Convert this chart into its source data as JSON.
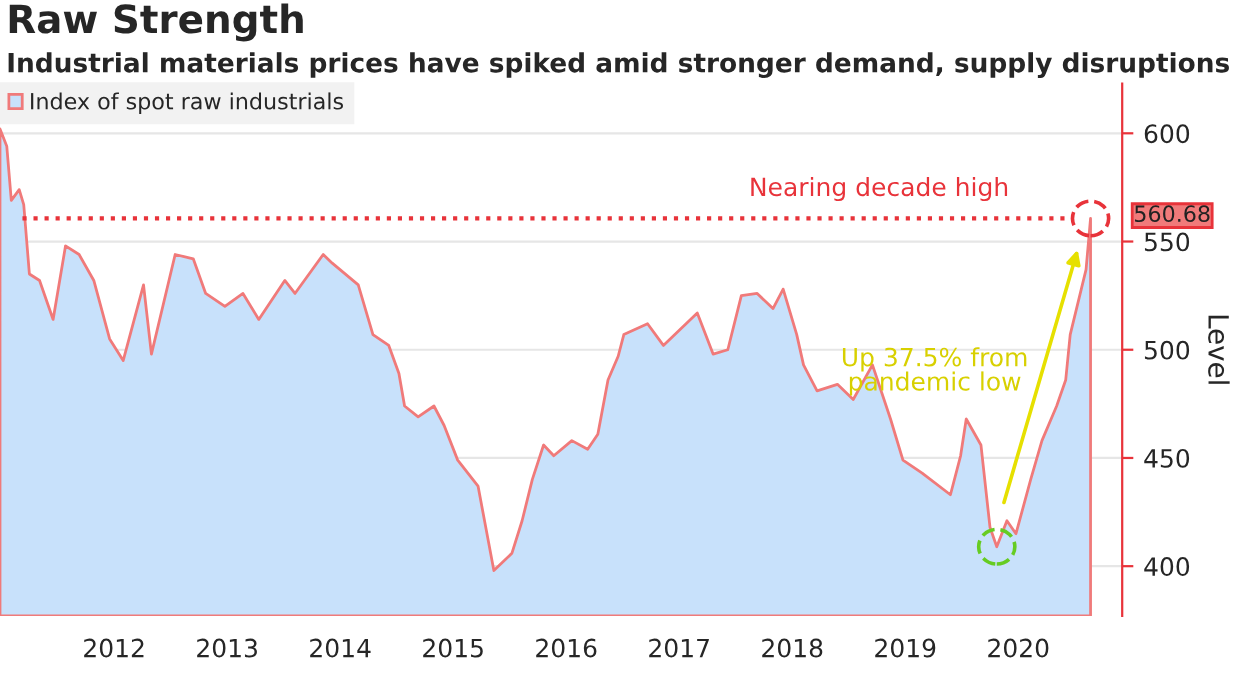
{
  "chart_data": {
    "type": "area",
    "title": "Raw Strength",
    "subtitle": "Industrial materials prices have spiked amid stronger demand, supply disruptions",
    "ylabel": "Level",
    "x": [
      2011.49,
      2011.55,
      2011.59,
      2011.66,
      2011.7,
      2011.75,
      2011.84,
      2011.96,
      2012.07,
      2012.19,
      2012.32,
      2012.46,
      2012.58,
      2012.76,
      2012.83,
      2013.04,
      2013.2,
      2013.31,
      2013.48,
      2013.64,
      2013.78,
      2014.01,
      2014.1,
      2014.35,
      2014.43,
      2014.66,
      2014.79,
      2014.93,
      2015.02,
      2015.07,
      2015.19,
      2015.33,
      2015.42,
      2015.54,
      2015.72,
      2015.86,
      2016.02,
      2016.11,
      2016.2,
      2016.3,
      2016.39,
      2016.55,
      2016.69,
      2016.78,
      2016.87,
      2016.96,
      2017.01,
      2017.22,
      2017.36,
      2017.66,
      2017.8,
      2017.93,
      2018.05,
      2018.19,
      2018.33,
      2018.42,
      2018.54,
      2018.6,
      2018.72,
      2018.9,
      2019.04,
      2019.21,
      2019.37,
      2019.48,
      2019.65,
      2019.9,
      2019.99,
      2020.04,
      2020.17,
      2020.25,
      2020.31,
      2020.4,
      2020.48,
      2020.61,
      2020.71,
      2020.84,
      2020.92,
      2020.96,
      2021.1,
      2021.14
    ],
    "series": [
      {
        "name": "Index of spot raw industrials",
        "color": "#f07a7a",
        "values": [
          602,
          594,
          569,
          574,
          567,
          535,
          532,
          514,
          548,
          544,
          532,
          505,
          495,
          530,
          498,
          544,
          542,
          526,
          520,
          526,
          514,
          532,
          526,
          544,
          540,
          530,
          507,
          502,
          489,
          474,
          469,
          474,
          465,
          449,
          437,
          398,
          406,
          421,
          440,
          456,
          451,
          458,
          454,
          461,
          486,
          497,
          507,
          512,
          502,
          517,
          498,
          500,
          525,
          526,
          519,
          528,
          507,
          493,
          481,
          484,
          477,
          493,
          468,
          449,
          443,
          433,
          451,
          468,
          456,
          418,
          409,
          421,
          415,
          440,
          458,
          474,
          486,
          507,
          537,
          560.68
        ]
      }
    ],
    "xlim": [
      2011.49,
      2021.42
    ],
    "ylim": [
      377,
      623
    ],
    "xticks": [
      {
        "value": 2012.5,
        "label": "2012"
      },
      {
        "value": 2013.5,
        "label": "2013"
      },
      {
        "value": 2014.5,
        "label": "2014"
      },
      {
        "value": 2015.5,
        "label": "2015"
      },
      {
        "value": 2016.5,
        "label": "2016"
      },
      {
        "value": 2017.5,
        "label": "2017"
      },
      {
        "value": 2018.5,
        "label": "2018"
      },
      {
        "value": 2019.5,
        "label": "2019"
      },
      {
        "value": 2020.5,
        "label": "2020"
      }
    ],
    "yticks": [
      400,
      450,
      500,
      550,
      600
    ],
    "ref_lines": [
      {
        "axis": "y",
        "value": 560.68,
        "label": "Nearing decade high",
        "color": "#e8333a",
        "line_style": "dotted"
      }
    ],
    "annotations": [
      {
        "text": "560.68",
        "x": 2021.14,
        "y": 560.68
      },
      "Up 37.5% from pandemic low"
    ],
    "grid": "y",
    "legend": "top left"
  }
}
